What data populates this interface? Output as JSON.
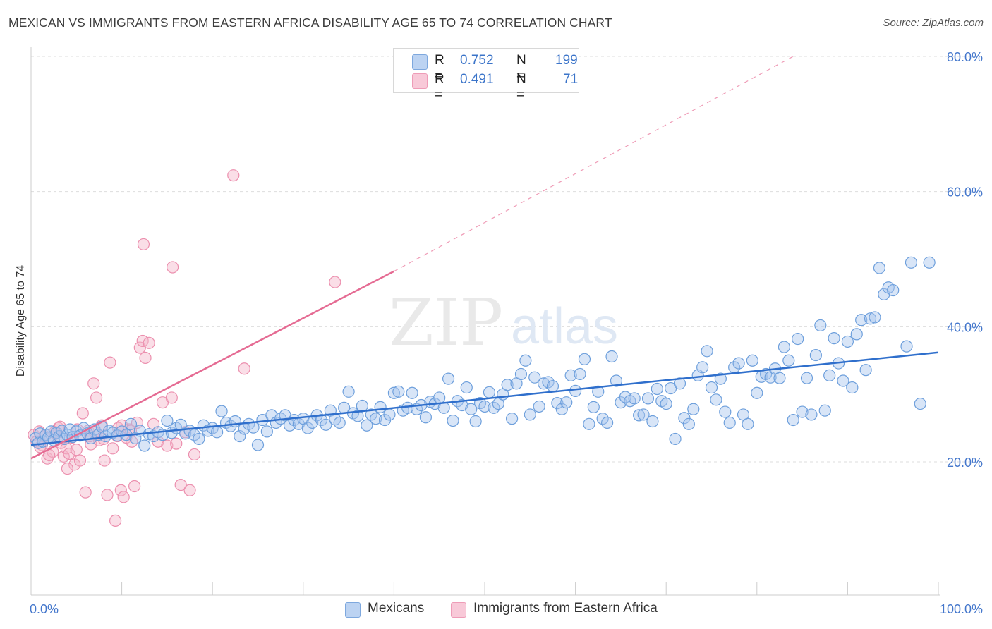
{
  "title": "MEXICAN VS IMMIGRANTS FROM EASTERN AFRICA DISABILITY AGE 65 TO 74 CORRELATION CHART",
  "source": "Source: ZipAtlas.com",
  "watermark": {
    "zip": "ZIP",
    "atlas": "atlas"
  },
  "legend": {
    "r_label": "R =",
    "n_label": "N =",
    "rows": [
      {
        "r": "0.752",
        "n": "199",
        "color": "#a8c6ee"
      },
      {
        "r": "0.491",
        "n": "71",
        "color": "#f5b6ca"
      }
    ]
  },
  "bottom_legend": [
    "Mexicans",
    "Immigrants from Eastern Africa"
  ],
  "colors": {
    "blue_fill": "#a8c6ee",
    "blue_stroke": "#6d9fdc",
    "blue_line": "#2f6fcc",
    "pink_fill": "#f5b6ca",
    "pink_stroke": "#ec8fae",
    "pink_line": "#e56b93",
    "axis_text": "#4477cc",
    "grid": "#dddddd"
  },
  "chart_data": {
    "type": "scatter",
    "title": "MEXICAN VS IMMIGRANTS FROM EASTERN AFRICA DISABILITY AGE 65 TO 74 CORRELATION CHART",
    "xlabel": "",
    "ylabel": "Disability Age 65 to 74",
    "xlim": [
      0,
      100
    ],
    "ylim": [
      0,
      82
    ],
    "x_tick_labels": [
      "0.0%",
      "100.0%"
    ],
    "y_ticks": [
      20,
      40,
      60,
      80
    ],
    "y_tick_labels": [
      "20.0%",
      "40.0%",
      "60.0%",
      "80.0%"
    ],
    "grid": true,
    "legend_position": "top-center",
    "series": [
      {
        "name": "Mexicans",
        "color": "#a8c6ee",
        "trend": {
          "x": [
            0,
            100
          ],
          "y": [
            22.5,
            36.2
          ]
        },
        "points": [
          [
            0.5,
            23.5
          ],
          [
            0.8,
            22.8
          ],
          [
            1.0,
            24.2
          ],
          [
            1.3,
            23.0
          ],
          [
            1.6,
            24.0
          ],
          [
            1.9,
            23.6
          ],
          [
            2.2,
            24.5
          ],
          [
            2.5,
            23.2
          ],
          [
            2.8,
            24.3
          ],
          [
            3.1,
            23.8
          ],
          [
            3.4,
            24.6
          ],
          [
            3.7,
            23.4
          ],
          [
            4.0,
            24.0
          ],
          [
            4.3,
            24.8
          ],
          [
            4.6,
            23.7
          ],
          [
            5.0,
            24.5
          ],
          [
            5.4,
            23.9
          ],
          [
            5.8,
            25.0
          ],
          [
            6.2,
            24.2
          ],
          [
            6.6,
            23.5
          ],
          [
            7.0,
            24.8
          ],
          [
            7.4,
            24.0
          ],
          [
            7.8,
            25.2
          ],
          [
            8.2,
            23.8
          ],
          [
            8.6,
            24.6
          ],
          [
            9.0,
            24.3
          ],
          [
            9.5,
            23.9
          ],
          [
            10.0,
            24.5
          ],
          [
            10.5,
            24.0
          ],
          [
            11.0,
            25.6
          ],
          [
            11.5,
            23.5
          ],
          [
            12.0,
            24.6
          ],
          [
            12.5,
            22.4
          ],
          [
            13.0,
            24.1
          ],
          [
            13.5,
            23.8
          ],
          [
            14.0,
            24.4
          ],
          [
            14.5,
            24.0
          ],
          [
            15.0,
            26.1
          ],
          [
            15.5,
            24.3
          ],
          [
            16.0,
            25.0
          ],
          [
            16.5,
            25.5
          ],
          [
            17.0,
            24.2
          ],
          [
            17.5,
            24.6
          ],
          [
            18.0,
            24.0
          ],
          [
            18.5,
            23.4
          ],
          [
            19.0,
            25.4
          ],
          [
            19.5,
            24.6
          ],
          [
            20.0,
            25.0
          ],
          [
            20.5,
            24.4
          ],
          [
            21.0,
            27.5
          ],
          [
            21.5,
            25.8
          ],
          [
            22.0,
            25.3
          ],
          [
            22.5,
            26.0
          ],
          [
            23.0,
            23.8
          ],
          [
            23.5,
            24.9
          ],
          [
            24.0,
            25.6
          ],
          [
            24.5,
            25.1
          ],
          [
            25.0,
            22.5
          ],
          [
            25.5,
            26.2
          ],
          [
            26.0,
            24.5
          ],
          [
            26.5,
            26.9
          ],
          [
            27.0,
            25.8
          ],
          [
            27.5,
            26.4
          ],
          [
            28.0,
            26.9
          ],
          [
            28.5,
            25.4
          ],
          [
            29.0,
            26.2
          ],
          [
            29.5,
            25.6
          ],
          [
            30.0,
            26.4
          ],
          [
            30.5,
            25.0
          ],
          [
            31.0,
            25.8
          ],
          [
            31.5,
            26.9
          ],
          [
            32.0,
            26.2
          ],
          [
            32.5,
            25.5
          ],
          [
            33.0,
            27.6
          ],
          [
            33.5,
            26.3
          ],
          [
            34.0,
            25.8
          ],
          [
            34.5,
            28.0
          ],
          [
            35.0,
            30.4
          ],
          [
            35.5,
            27.2
          ],
          [
            36.0,
            26.8
          ],
          [
            36.5,
            28.3
          ],
          [
            37.0,
            25.4
          ],
          [
            37.5,
            27.0
          ],
          [
            38.0,
            26.4
          ],
          [
            38.5,
            28.1
          ],
          [
            39.0,
            26.2
          ],
          [
            39.5,
            27.0
          ],
          [
            40.0,
            30.2
          ],
          [
            40.5,
            30.4
          ],
          [
            41.0,
            27.6
          ],
          [
            41.5,
            28.0
          ],
          [
            42.0,
            30.2
          ],
          [
            42.5,
            27.8
          ],
          [
            43.0,
            28.4
          ],
          [
            43.5,
            26.6
          ],
          [
            44.0,
            28.9
          ],
          [
            44.5,
            28.6
          ],
          [
            45.0,
            29.5
          ],
          [
            45.5,
            28.0
          ],
          [
            46.0,
            32.3
          ],
          [
            46.5,
            26.1
          ],
          [
            47.0,
            29.0
          ],
          [
            47.5,
            28.4
          ],
          [
            48.0,
            31.0
          ],
          [
            48.5,
            27.8
          ],
          [
            49.0,
            26.0
          ],
          [
            49.5,
            28.7
          ],
          [
            50.0,
            28.2
          ],
          [
            50.5,
            30.3
          ],
          [
            51.0,
            28.0
          ],
          [
            51.5,
            28.6
          ],
          [
            52.0,
            30.0
          ],
          [
            52.5,
            31.4
          ],
          [
            53.0,
            26.4
          ],
          [
            53.5,
            31.6
          ],
          [
            54.0,
            33.0
          ],
          [
            54.5,
            35.0
          ],
          [
            55.0,
            27.0
          ],
          [
            55.5,
            32.5
          ],
          [
            56.0,
            28.2
          ],
          [
            56.5,
            31.6
          ],
          [
            57.0,
            31.8
          ],
          [
            57.5,
            31.2
          ],
          [
            58.0,
            28.7
          ],
          [
            58.5,
            27.8
          ],
          [
            59.0,
            28.8
          ],
          [
            59.5,
            32.8
          ],
          [
            60.0,
            30.5
          ],
          [
            60.5,
            33.0
          ],
          [
            61.0,
            35.2
          ],
          [
            61.5,
            25.6
          ],
          [
            62.0,
            28.1
          ],
          [
            62.5,
            30.4
          ],
          [
            63.0,
            26.4
          ],
          [
            63.5,
            25.8
          ],
          [
            64.0,
            35.6
          ],
          [
            64.5,
            32.0
          ],
          [
            65.0,
            28.8
          ],
          [
            65.5,
            29.6
          ],
          [
            66.0,
            29.0
          ],
          [
            66.5,
            29.4
          ],
          [
            67.0,
            26.9
          ],
          [
            67.5,
            27.0
          ],
          [
            68.0,
            29.4
          ],
          [
            68.5,
            26.0
          ],
          [
            69.0,
            30.8
          ],
          [
            69.5,
            29.0
          ],
          [
            70.0,
            28.6
          ],
          [
            70.5,
            30.9
          ],
          [
            71.0,
            23.4
          ],
          [
            71.5,
            31.6
          ],
          [
            72.0,
            26.5
          ],
          [
            72.5,
            25.6
          ],
          [
            73.0,
            27.8
          ],
          [
            73.5,
            32.8
          ],
          [
            74.0,
            34.0
          ],
          [
            74.5,
            36.4
          ],
          [
            75.0,
            31.0
          ],
          [
            75.5,
            29.2
          ],
          [
            76.0,
            32.3
          ],
          [
            76.5,
            27.4
          ],
          [
            77.0,
            25.8
          ],
          [
            77.5,
            34.0
          ],
          [
            78.0,
            34.6
          ],
          [
            78.5,
            27.0
          ],
          [
            79.0,
            25.6
          ],
          [
            79.5,
            35.0
          ],
          [
            80.0,
            30.2
          ],
          [
            80.5,
            32.6
          ],
          [
            81.0,
            33.0
          ],
          [
            81.5,
            32.5
          ],
          [
            82.0,
            33.8
          ],
          [
            82.5,
            32.4
          ],
          [
            83.0,
            37.0
          ],
          [
            83.5,
            35.0
          ],
          [
            84.0,
            26.2
          ],
          [
            84.5,
            38.2
          ],
          [
            85.0,
            27.4
          ],
          [
            85.5,
            32.4
          ],
          [
            86.0,
            27.0
          ],
          [
            86.5,
            35.8
          ],
          [
            87.0,
            40.2
          ],
          [
            87.5,
            27.6
          ],
          [
            88.0,
            32.8
          ],
          [
            88.5,
            38.3
          ],
          [
            89.0,
            34.6
          ],
          [
            89.5,
            32.0
          ],
          [
            90.0,
            37.8
          ],
          [
            90.5,
            31.0
          ],
          [
            91.0,
            38.9
          ],
          [
            91.5,
            41.0
          ],
          [
            92.0,
            33.6
          ],
          [
            92.5,
            41.2
          ],
          [
            93.0,
            41.4
          ],
          [
            93.5,
            48.7
          ],
          [
            94.0,
            44.8
          ],
          [
            94.5,
            45.8
          ],
          [
            95.0,
            45.4
          ],
          [
            96.5,
            37.1
          ],
          [
            97.0,
            49.5
          ],
          [
            98.0,
            28.6
          ],
          [
            99.0,
            49.5
          ]
        ]
      },
      {
        "name": "Immigrants from Eastern Africa",
        "color": "#f5b6ca",
        "trend": {
          "x": [
            0,
            40
          ],
          "y": [
            20.5,
            48.2
          ],
          "dashed_to": {
            "x": 84,
            "y": 80
          }
        },
        "points": [
          [
            0.3,
            24.0
          ],
          [
            0.6,
            23.0
          ],
          [
            0.9,
            24.5
          ],
          [
            1.2,
            22.5
          ],
          [
            1.5,
            23.8
          ],
          [
            1.8,
            20.5
          ],
          [
            2.1,
            23.5
          ],
          [
            2.4,
            21.5
          ],
          [
            2.7,
            24.2
          ],
          [
            3.0,
            25.0
          ],
          [
            3.3,
            22.8
          ],
          [
            3.6,
            20.8
          ],
          [
            3.9,
            22.0
          ],
          [
            4.2,
            21.2
          ],
          [
            4.5,
            23.6
          ],
          [
            4.8,
            19.6
          ],
          [
            5.1,
            24.8
          ],
          [
            5.4,
            20.2
          ],
          [
            5.7,
            27.2
          ],
          [
            6.0,
            15.5
          ],
          [
            6.3,
            24.6
          ],
          [
            6.6,
            22.6
          ],
          [
            6.9,
            31.6
          ],
          [
            7.2,
            29.5
          ],
          [
            7.5,
            23.2
          ],
          [
            7.8,
            25.4
          ],
          [
            8.1,
            20.2
          ],
          [
            8.4,
            15.1
          ],
          [
            8.7,
            34.7
          ],
          [
            9.0,
            22.0
          ],
          [
            9.3,
            11.3
          ],
          [
            9.6,
            25.0
          ],
          [
            9.9,
            15.8
          ],
          [
            10.2,
            14.8
          ],
          [
            10.5,
            23.6
          ],
          [
            10.8,
            24.8
          ],
          [
            11.1,
            23.0
          ],
          [
            11.4,
            16.4
          ],
          [
            11.7,
            25.8
          ],
          [
            12.0,
            36.9
          ],
          [
            12.3,
            37.9
          ],
          [
            12.6,
            35.4
          ],
          [
            13.0,
            37.6
          ],
          [
            13.5,
            25.6
          ],
          [
            14.0,
            23.0
          ],
          [
            14.5,
            28.8
          ],
          [
            15.0,
            22.4
          ],
          [
            15.5,
            29.5
          ],
          [
            16.0,
            22.7
          ],
          [
            16.5,
            16.6
          ],
          [
            17.0,
            24.4
          ],
          [
            17.5,
            15.8
          ],
          [
            18.0,
            21.1
          ],
          [
            22.3,
            62.4
          ],
          [
            23.5,
            33.8
          ],
          [
            33.5,
            46.6
          ],
          [
            12.4,
            52.2
          ],
          [
            15.6,
            48.8
          ],
          [
            2.0,
            21.0
          ],
          [
            4.0,
            19.0
          ],
          [
            5.0,
            21.8
          ],
          [
            6.5,
            23.8
          ],
          [
            7.0,
            24.4
          ],
          [
            3.2,
            25.2
          ],
          [
            8.0,
            23.4
          ],
          [
            1.0,
            22.2
          ],
          [
            2.6,
            24.4
          ],
          [
            5.5,
            24.0
          ],
          [
            9.5,
            23.8
          ],
          [
            10.0,
            25.4
          ],
          [
            11.0,
            24.6
          ]
        ]
      }
    ]
  }
}
